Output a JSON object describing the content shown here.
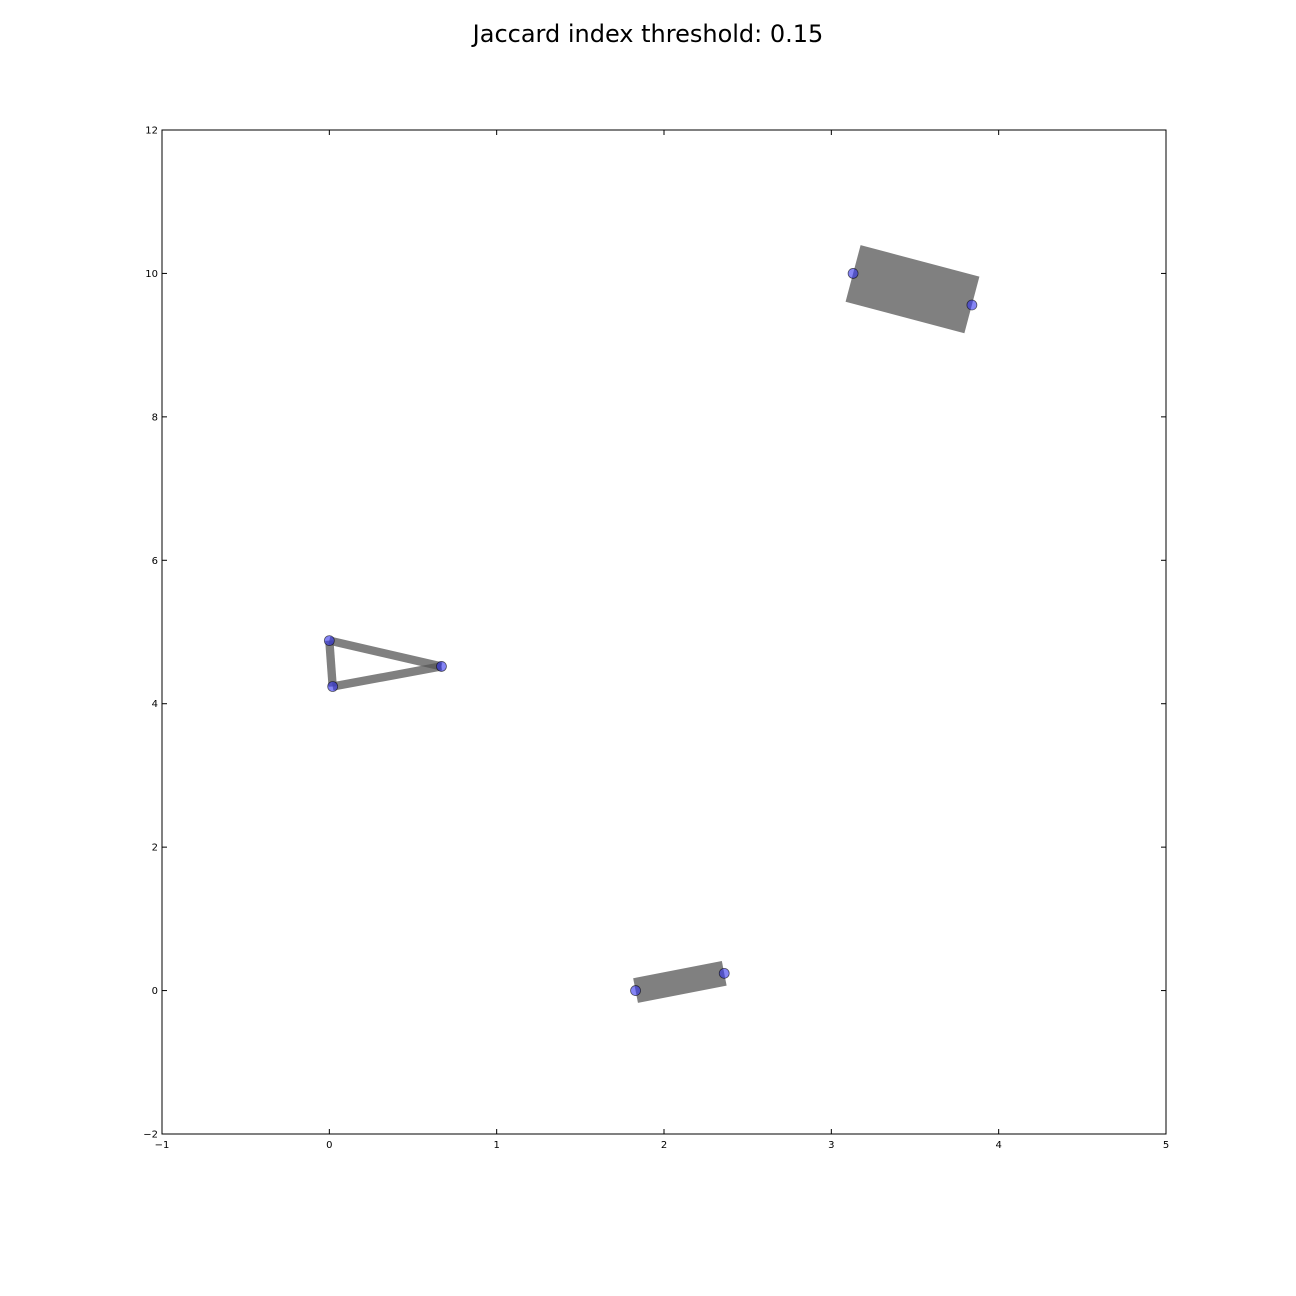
{
  "title": "Jaccard index threshold: 0.15",
  "chart_data": {
    "type": "scatter",
    "title": "Jaccard index threshold: 0.15",
    "xlabel": "",
    "ylabel": "",
    "xlim": [
      -1,
      5
    ],
    "ylim": [
      -2,
      12
    ],
    "xticks": [
      -1,
      0,
      1,
      2,
      3,
      4,
      5
    ],
    "yticks": [
      -2,
      0,
      2,
      4,
      6,
      8,
      10,
      12
    ],
    "grid": false,
    "points": [
      {
        "x": 0.0,
        "y": 4.88
      },
      {
        "x": 0.02,
        "y": 4.24
      },
      {
        "x": 0.67,
        "y": 4.52
      },
      {
        "x": 1.83,
        "y": 0.0
      },
      {
        "x": 2.36,
        "y": 0.24
      },
      {
        "x": 3.13,
        "y": 10.0
      },
      {
        "x": 3.84,
        "y": 9.56
      }
    ],
    "edges": [
      {
        "from": 0,
        "to": 1,
        "weight": 0.1
      },
      {
        "from": 0,
        "to": 2,
        "weight": 0.1
      },
      {
        "from": 1,
        "to": 2,
        "weight": 0.1
      },
      {
        "from": 3,
        "to": 4,
        "weight": 0.3
      },
      {
        "from": 5,
        "to": 6,
        "weight": 0.7
      }
    ],
    "colors": {
      "point": "#3333ee",
      "edge": "#555555"
    }
  }
}
